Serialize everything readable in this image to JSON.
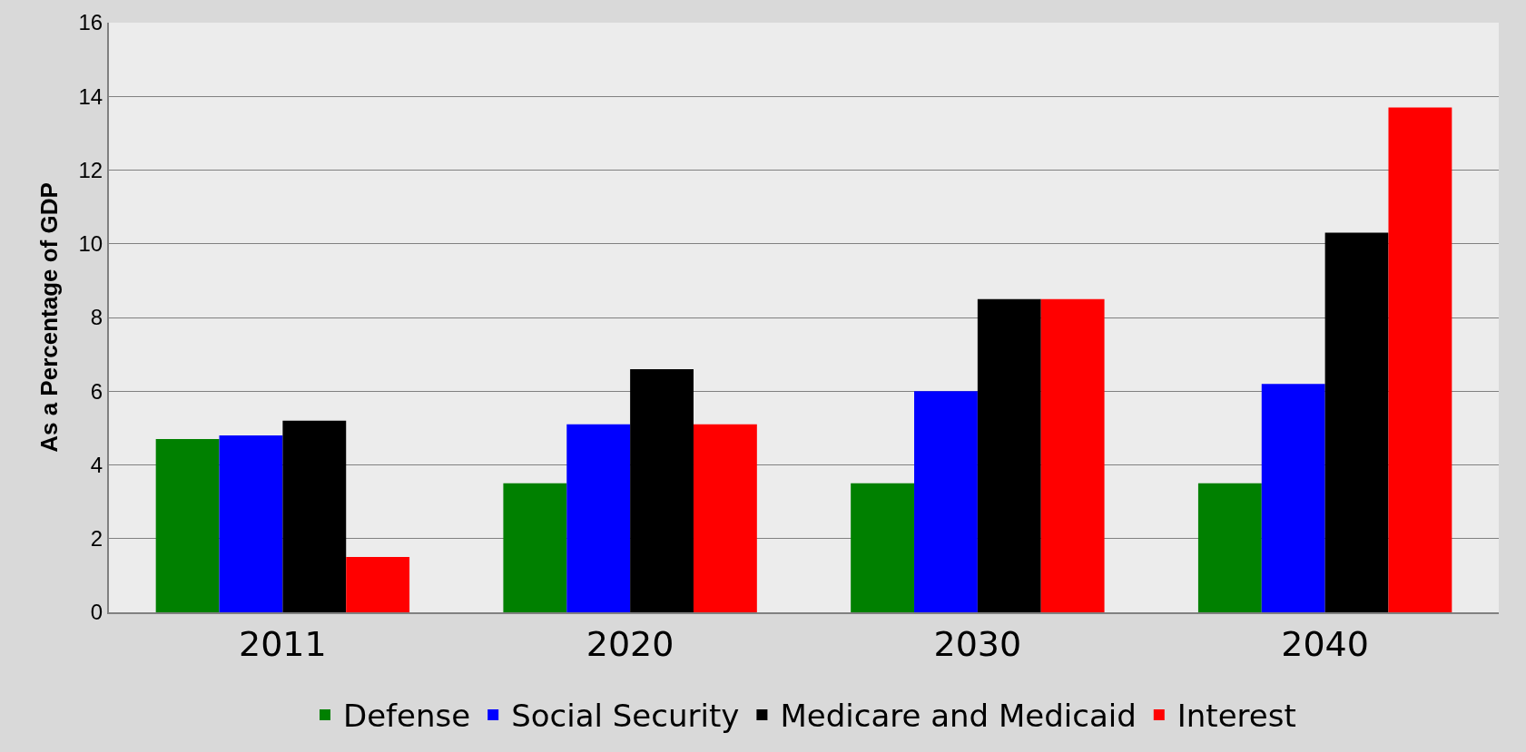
{
  "chart_data": {
    "type": "bar",
    "ylabel": "As a Percentage of GDP",
    "categories": [
      "2011",
      "2020",
      "2030",
      "2040"
    ],
    "series": [
      {
        "name": "Defense",
        "color": "#008000",
        "values": [
          4.7,
          3.5,
          3.5,
          3.5
        ]
      },
      {
        "name": "Social Security",
        "color": "#0000ff",
        "values": [
          4.8,
          5.1,
          6.0,
          6.2
        ]
      },
      {
        "name": "Medicare and Medicaid",
        "color": "#000000",
        "values": [
          5.2,
          6.6,
          8.5,
          10.3
        ]
      },
      {
        "name": "Interest",
        "color": "#ff0000",
        "values": [
          1.5,
          5.1,
          8.5,
          13.7
        ]
      }
    ],
    "ylim": [
      0,
      16
    ],
    "yticks": [
      0,
      2,
      4,
      6,
      8,
      10,
      12,
      14,
      16
    ],
    "grid": "y",
    "legend": "bottom"
  }
}
